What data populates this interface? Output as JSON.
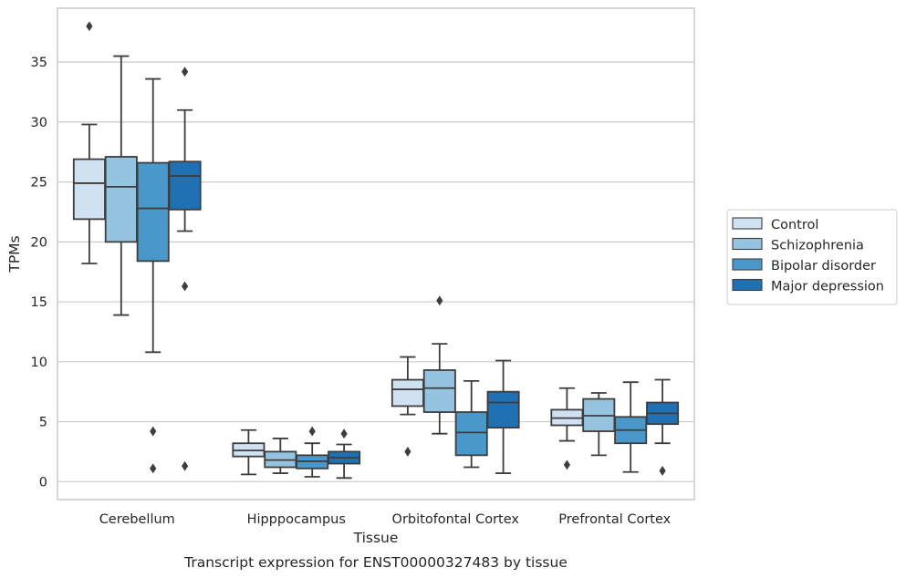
{
  "chart_data": {
    "type": "box",
    "xlabel": "Tissue",
    "ylabel": "TPMs",
    "caption": "Transcript expression for ENST00000327483 by tissue",
    "ylim": [
      -1.5,
      39.5
    ],
    "yticks": [
      0,
      5,
      10,
      15,
      20,
      25,
      30,
      35
    ],
    "grid": true,
    "legend_position": "right",
    "categories": [
      "Cerebellum",
      "Hipppocampus",
      "Orbitofontal Cortex",
      "Prefrontal Cortex"
    ],
    "series": [
      {
        "name": "Control",
        "color": "#d0e1f2",
        "boxes": [
          {
            "whislo": 18.2,
            "q1": 21.9,
            "med": 24.9,
            "q3": 26.9,
            "whishi": 29.8,
            "fliers": [
              38.0
            ]
          },
          {
            "whislo": 0.6,
            "q1": 2.1,
            "med": 2.6,
            "q3": 3.2,
            "whishi": 4.3,
            "fliers": []
          },
          {
            "whislo": 5.6,
            "q1": 6.3,
            "med": 7.7,
            "q3": 8.5,
            "whishi": 10.4,
            "fliers": [
              2.5
            ]
          },
          {
            "whislo": 3.4,
            "q1": 4.7,
            "med": 5.3,
            "q3": 6.0,
            "whishi": 7.8,
            "fliers": [
              1.4
            ]
          }
        ]
      },
      {
        "name": "Schizophrenia",
        "color": "#94c4df",
        "boxes": [
          {
            "whislo": 13.9,
            "q1": 20.0,
            "med": 24.6,
            "q3": 27.1,
            "whishi": 35.5,
            "fliers": []
          },
          {
            "whislo": 0.7,
            "q1": 1.2,
            "med": 1.8,
            "q3": 2.5,
            "whishi": 3.6,
            "fliers": []
          },
          {
            "whislo": 4.0,
            "q1": 5.8,
            "med": 7.8,
            "q3": 9.3,
            "whishi": 11.5,
            "fliers": [
              15.1
            ]
          },
          {
            "whislo": 2.2,
            "q1": 4.2,
            "med": 5.5,
            "q3": 6.9,
            "whishi": 7.4,
            "fliers": []
          }
        ]
      },
      {
        "name": "Bipolar disorder",
        "color": "#4a98c9",
        "boxes": [
          {
            "whislo": 10.8,
            "q1": 18.4,
            "med": 22.8,
            "q3": 26.6,
            "whishi": 33.6,
            "fliers": [
              4.2,
              1.1
            ]
          },
          {
            "whislo": 0.4,
            "q1": 1.1,
            "med": 1.7,
            "q3": 2.2,
            "whishi": 3.2,
            "fliers": [
              4.2
            ]
          },
          {
            "whislo": 1.2,
            "q1": 2.2,
            "med": 4.1,
            "q3": 5.8,
            "whishi": 8.4,
            "fliers": []
          },
          {
            "whislo": 0.8,
            "q1": 3.2,
            "med": 4.3,
            "q3": 5.4,
            "whishi": 8.3,
            "fliers": []
          }
        ]
      },
      {
        "name": "Major depression",
        "color": "#2070b4",
        "boxes": [
          {
            "whislo": 20.9,
            "q1": 22.7,
            "med": 25.5,
            "q3": 26.7,
            "whishi": 31.0,
            "fliers": [
              34.2,
              16.3,
              1.3
            ]
          },
          {
            "whislo": 0.3,
            "q1": 1.5,
            "med": 2.0,
            "q3": 2.5,
            "whishi": 3.1,
            "fliers": [
              4.0
            ]
          },
          {
            "whislo": 0.7,
            "q1": 4.5,
            "med": 6.6,
            "q3": 7.5,
            "whishi": 10.1,
            "fliers": []
          },
          {
            "whislo": 3.2,
            "q1": 4.8,
            "med": 5.7,
            "q3": 6.6,
            "whishi": 8.5,
            "fliers": [
              0.9
            ]
          }
        ]
      }
    ]
  }
}
